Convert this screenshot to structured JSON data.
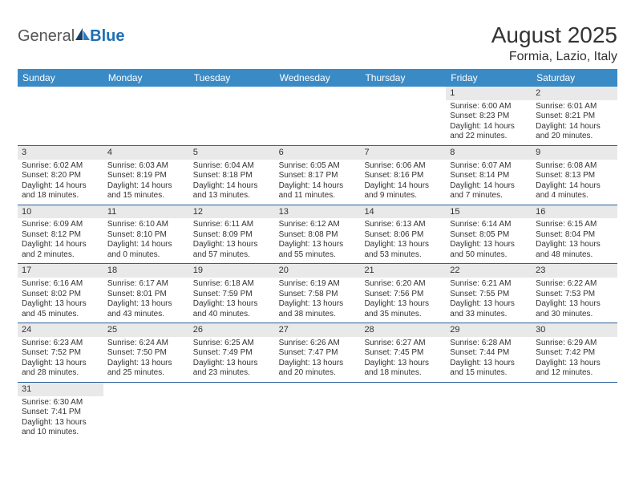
{
  "logo": {
    "text_general": "General",
    "text_blue": "Blue"
  },
  "title": "August 2025",
  "location": "Formia, Lazio, Italy",
  "colors": {
    "header_bg": "#3a8ac6",
    "daynum_bg": "#e9e9e9",
    "row_border": "#2a5f99",
    "text": "#333333",
    "logo_gray": "#555555",
    "logo_blue": "#1f6fb2"
  },
  "day_headers": [
    "Sunday",
    "Monday",
    "Tuesday",
    "Wednesday",
    "Thursday",
    "Friday",
    "Saturday"
  ],
  "weeks": [
    [
      {
        "empty": true
      },
      {
        "empty": true
      },
      {
        "empty": true
      },
      {
        "empty": true
      },
      {
        "empty": true
      },
      {
        "day": "1",
        "sunrise": "Sunrise: 6:00 AM",
        "sunset": "Sunset: 8:23 PM",
        "daylight1": "Daylight: 14 hours",
        "daylight2": "and 22 minutes."
      },
      {
        "day": "2",
        "sunrise": "Sunrise: 6:01 AM",
        "sunset": "Sunset: 8:21 PM",
        "daylight1": "Daylight: 14 hours",
        "daylight2": "and 20 minutes."
      }
    ],
    [
      {
        "day": "3",
        "sunrise": "Sunrise: 6:02 AM",
        "sunset": "Sunset: 8:20 PM",
        "daylight1": "Daylight: 14 hours",
        "daylight2": "and 18 minutes."
      },
      {
        "day": "4",
        "sunrise": "Sunrise: 6:03 AM",
        "sunset": "Sunset: 8:19 PM",
        "daylight1": "Daylight: 14 hours",
        "daylight2": "and 15 minutes."
      },
      {
        "day": "5",
        "sunrise": "Sunrise: 6:04 AM",
        "sunset": "Sunset: 8:18 PM",
        "daylight1": "Daylight: 14 hours",
        "daylight2": "and 13 minutes."
      },
      {
        "day": "6",
        "sunrise": "Sunrise: 6:05 AM",
        "sunset": "Sunset: 8:17 PM",
        "daylight1": "Daylight: 14 hours",
        "daylight2": "and 11 minutes."
      },
      {
        "day": "7",
        "sunrise": "Sunrise: 6:06 AM",
        "sunset": "Sunset: 8:16 PM",
        "daylight1": "Daylight: 14 hours",
        "daylight2": "and 9 minutes."
      },
      {
        "day": "8",
        "sunrise": "Sunrise: 6:07 AM",
        "sunset": "Sunset: 8:14 PM",
        "daylight1": "Daylight: 14 hours",
        "daylight2": "and 7 minutes."
      },
      {
        "day": "9",
        "sunrise": "Sunrise: 6:08 AM",
        "sunset": "Sunset: 8:13 PM",
        "daylight1": "Daylight: 14 hours",
        "daylight2": "and 4 minutes."
      }
    ],
    [
      {
        "day": "10",
        "sunrise": "Sunrise: 6:09 AM",
        "sunset": "Sunset: 8:12 PM",
        "daylight1": "Daylight: 14 hours",
        "daylight2": "and 2 minutes."
      },
      {
        "day": "11",
        "sunrise": "Sunrise: 6:10 AM",
        "sunset": "Sunset: 8:10 PM",
        "daylight1": "Daylight: 14 hours",
        "daylight2": "and 0 minutes."
      },
      {
        "day": "12",
        "sunrise": "Sunrise: 6:11 AM",
        "sunset": "Sunset: 8:09 PM",
        "daylight1": "Daylight: 13 hours",
        "daylight2": "and 57 minutes."
      },
      {
        "day": "13",
        "sunrise": "Sunrise: 6:12 AM",
        "sunset": "Sunset: 8:08 PM",
        "daylight1": "Daylight: 13 hours",
        "daylight2": "and 55 minutes."
      },
      {
        "day": "14",
        "sunrise": "Sunrise: 6:13 AM",
        "sunset": "Sunset: 8:06 PM",
        "daylight1": "Daylight: 13 hours",
        "daylight2": "and 53 minutes."
      },
      {
        "day": "15",
        "sunrise": "Sunrise: 6:14 AM",
        "sunset": "Sunset: 8:05 PM",
        "daylight1": "Daylight: 13 hours",
        "daylight2": "and 50 minutes."
      },
      {
        "day": "16",
        "sunrise": "Sunrise: 6:15 AM",
        "sunset": "Sunset: 8:04 PM",
        "daylight1": "Daylight: 13 hours",
        "daylight2": "and 48 minutes."
      }
    ],
    [
      {
        "day": "17",
        "sunrise": "Sunrise: 6:16 AM",
        "sunset": "Sunset: 8:02 PM",
        "daylight1": "Daylight: 13 hours",
        "daylight2": "and 45 minutes."
      },
      {
        "day": "18",
        "sunrise": "Sunrise: 6:17 AM",
        "sunset": "Sunset: 8:01 PM",
        "daylight1": "Daylight: 13 hours",
        "daylight2": "and 43 minutes."
      },
      {
        "day": "19",
        "sunrise": "Sunrise: 6:18 AM",
        "sunset": "Sunset: 7:59 PM",
        "daylight1": "Daylight: 13 hours",
        "daylight2": "and 40 minutes."
      },
      {
        "day": "20",
        "sunrise": "Sunrise: 6:19 AM",
        "sunset": "Sunset: 7:58 PM",
        "daylight1": "Daylight: 13 hours",
        "daylight2": "and 38 minutes."
      },
      {
        "day": "21",
        "sunrise": "Sunrise: 6:20 AM",
        "sunset": "Sunset: 7:56 PM",
        "daylight1": "Daylight: 13 hours",
        "daylight2": "and 35 minutes."
      },
      {
        "day": "22",
        "sunrise": "Sunrise: 6:21 AM",
        "sunset": "Sunset: 7:55 PM",
        "daylight1": "Daylight: 13 hours",
        "daylight2": "and 33 minutes."
      },
      {
        "day": "23",
        "sunrise": "Sunrise: 6:22 AM",
        "sunset": "Sunset: 7:53 PM",
        "daylight1": "Daylight: 13 hours",
        "daylight2": "and 30 minutes."
      }
    ],
    [
      {
        "day": "24",
        "sunrise": "Sunrise: 6:23 AM",
        "sunset": "Sunset: 7:52 PM",
        "daylight1": "Daylight: 13 hours",
        "daylight2": "and 28 minutes."
      },
      {
        "day": "25",
        "sunrise": "Sunrise: 6:24 AM",
        "sunset": "Sunset: 7:50 PM",
        "daylight1": "Daylight: 13 hours",
        "daylight2": "and 25 minutes."
      },
      {
        "day": "26",
        "sunrise": "Sunrise: 6:25 AM",
        "sunset": "Sunset: 7:49 PM",
        "daylight1": "Daylight: 13 hours",
        "daylight2": "and 23 minutes."
      },
      {
        "day": "27",
        "sunrise": "Sunrise: 6:26 AM",
        "sunset": "Sunset: 7:47 PM",
        "daylight1": "Daylight: 13 hours",
        "daylight2": "and 20 minutes."
      },
      {
        "day": "28",
        "sunrise": "Sunrise: 6:27 AM",
        "sunset": "Sunset: 7:45 PM",
        "daylight1": "Daylight: 13 hours",
        "daylight2": "and 18 minutes."
      },
      {
        "day": "29",
        "sunrise": "Sunrise: 6:28 AM",
        "sunset": "Sunset: 7:44 PM",
        "daylight1": "Daylight: 13 hours",
        "daylight2": "and 15 minutes."
      },
      {
        "day": "30",
        "sunrise": "Sunrise: 6:29 AM",
        "sunset": "Sunset: 7:42 PM",
        "daylight1": "Daylight: 13 hours",
        "daylight2": "and 12 minutes."
      }
    ],
    [
      {
        "day": "31",
        "sunrise": "Sunrise: 6:30 AM",
        "sunset": "Sunset: 7:41 PM",
        "daylight1": "Daylight: 13 hours",
        "daylight2": "and 10 minutes."
      },
      {
        "empty": true
      },
      {
        "empty": true
      },
      {
        "empty": true
      },
      {
        "empty": true
      },
      {
        "empty": true
      },
      {
        "empty": true
      }
    ]
  ]
}
